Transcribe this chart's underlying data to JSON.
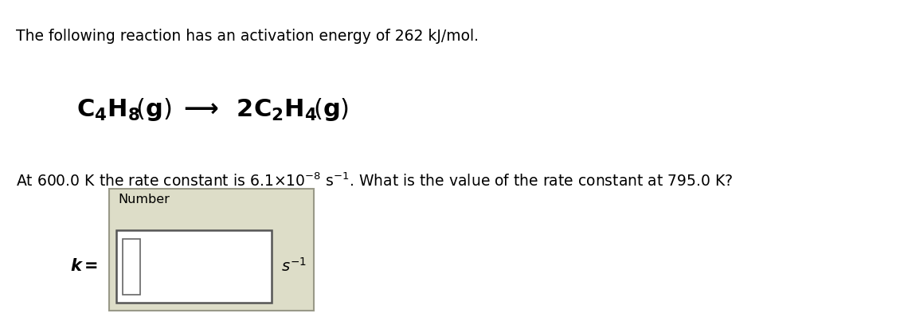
{
  "bg_color": "#ffffff",
  "line1": "The following reaction has an activation energy of 262 kJ/mol.",
  "line1_fontsize": 13.5,
  "reaction_fontsize": 22,
  "line3_fontsize": 13.5,
  "box_outer_color": "#ddddc8",
  "inner_box_color": "#ffffff",
  "inner_box_edge": "#555555",
  "k_eq_fontsize": 15,
  "s_unit_fontsize": 14
}
